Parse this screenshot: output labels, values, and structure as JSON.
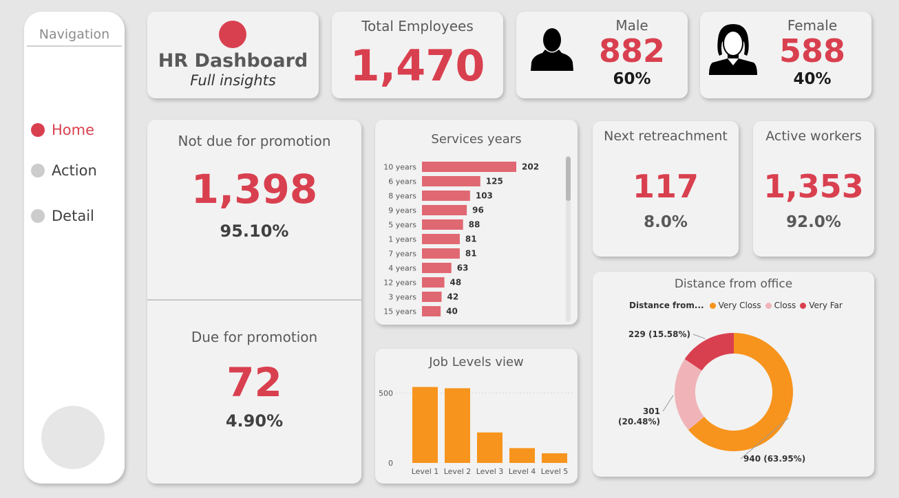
{
  "navigation": {
    "title": "Navigation",
    "items": [
      {
        "label": "Home",
        "active": true
      },
      {
        "label": "Action",
        "active": false
      },
      {
        "label": "Detail",
        "active": false
      }
    ]
  },
  "header": {
    "title": "HR Dashboard",
    "subtitle": "Full insights"
  },
  "total": {
    "label": "Total Employees",
    "value": "1,470"
  },
  "male": {
    "label": "Male",
    "value": "882",
    "pct": "60%"
  },
  "female": {
    "label": "Female",
    "value": "588",
    "pct": "40%"
  },
  "not_due": {
    "label": "Not due for promotion",
    "value": "1,398",
    "pct": "95.10%"
  },
  "due": {
    "label": "Due for promotion",
    "value": "72",
    "pct": "4.90%"
  },
  "retrench": {
    "label": "Next retreachment",
    "value": "117",
    "pct": "8.0%"
  },
  "active": {
    "label": "Active workers",
    "value": "1,353",
    "pct": "92.0%"
  },
  "colors": {
    "accent": "#d9404f",
    "bar": "#e06872",
    "orange": "#f7941d",
    "pink": "#f0b4b8"
  },
  "chart_data": [
    {
      "type": "bar",
      "title": "Services years",
      "orientation": "horizontal",
      "categories": [
        "10 years",
        "6 years",
        "8 years",
        "9 years",
        "5 years",
        "1 years",
        "7 years",
        "4 years",
        "12 years",
        "3 years",
        "15 years"
      ],
      "values": [
        202,
        125,
        103,
        96,
        88,
        81,
        81,
        63,
        48,
        42,
        40
      ]
    },
    {
      "type": "bar",
      "title": "Job Levels view",
      "categories": [
        "Level 1",
        "Level 2",
        "Level 3",
        "Level 4",
        "Level 5"
      ],
      "values": [
        543,
        534,
        218,
        106,
        69
      ],
      "ylim": [
        0,
        600
      ],
      "yticks": [
        "0",
        "500"
      ]
    },
    {
      "type": "pie",
      "title": "Distance from office",
      "legend_title": "Distance from...",
      "legend_position": "top",
      "labels": [
        "Very Closs",
        "Closs",
        "Very Far"
      ],
      "values": [
        940,
        301,
        229
      ],
      "data_labels": [
        "940 (63.95%)",
        "301 (20.48%)",
        "229 (15.58%)"
      ],
      "colors": [
        "#f7941d",
        "#f0b4b8",
        "#d9404f"
      ]
    }
  ]
}
